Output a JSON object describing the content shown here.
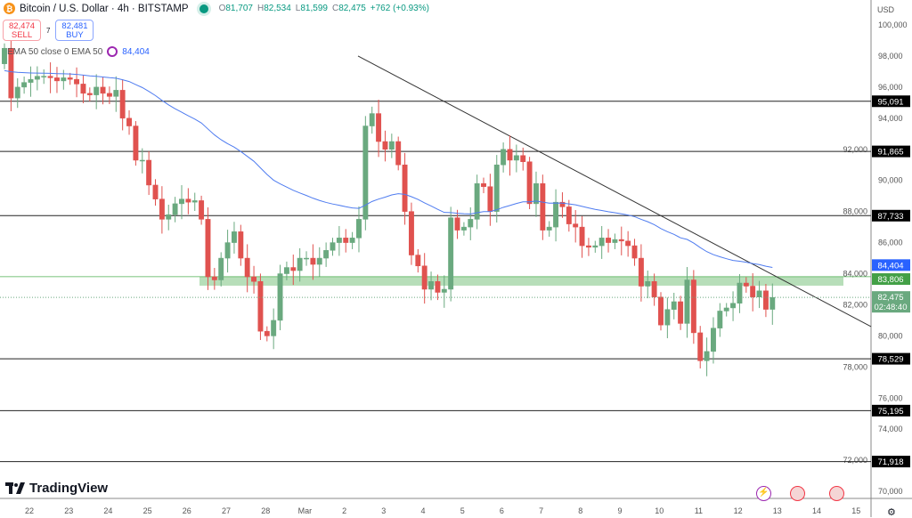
{
  "header": {
    "title": "Bitcoin / U.S. Dollar · 4h · BITSTAMP",
    "open_label": "O",
    "open": "81,707",
    "high_label": "H",
    "high": "82,534",
    "low_label": "L",
    "low": "81,599",
    "close_label": "C",
    "close": "82,475",
    "change": "+762 (+0.93%)"
  },
  "trade": {
    "sell_price": "82,474",
    "sell_label": "SELL",
    "spread": "7",
    "buy_price": "82,481",
    "buy_label": "BUY"
  },
  "indicator": {
    "label": "EMA 50 close 0 EMA 50",
    "value": "84,404"
  },
  "axis": {
    "currency": "USD"
  },
  "brand": "TradingView",
  "colors": {
    "up": "#6aa97f",
    "down": "#e0524f",
    "ema": "#4f7cf0",
    "zone": "#a5d6a7",
    "trend": "#333333"
  },
  "chart_data": {
    "type": "candlestick",
    "symbol": "BTCUSD",
    "interval": "4h",
    "ylim": [
      69000,
      101500
    ],
    "yticks": [
      "100,000",
      "98,000",
      "96,000",
      "94,000",
      "92,000",
      "90,000",
      "88,000",
      "86,000",
      "84,000",
      "82,000",
      "80,000",
      "78,000",
      "76,000",
      "74,000",
      "72,000",
      "70,000"
    ],
    "ytick_values": [
      100000,
      98000,
      96000,
      94000,
      92000,
      90000,
      88000,
      86000,
      84000,
      82000,
      80000,
      78000,
      76000,
      74000,
      72000,
      70000
    ],
    "xticks": [
      "22",
      "23",
      "24",
      "25",
      "26",
      "27",
      "28",
      "Mar",
      "2",
      "3",
      "4",
      "5",
      "6",
      "7",
      "8",
      "9",
      "10",
      "11",
      "12",
      "13",
      "14",
      "15"
    ],
    "first_open": 97.5,
    "closes_k": [
      98.5,
      95.3,
      96.0,
      96.3,
      96.5,
      96.7,
      96.7,
      96.6,
      96.4,
      96.6,
      96.5,
      96.2,
      95.6,
      95.5,
      96.0,
      95.6,
      95.4,
      95.8,
      94.0,
      93.5,
      91.3,
      91.3,
      89.7,
      88.8,
      87.5,
      87.8,
      88.5,
      88.8,
      88.6,
      88.7,
      87.5,
      83.8,
      83.6,
      85.0,
      86.0,
      86.7,
      85.0,
      83.8,
      83.5,
      80.3,
      80.0,
      81.0,
      84.0,
      84.4,
      84.2,
      85.0,
      85.0,
      84.6,
      85.0,
      85.5,
      86.0,
      86.3,
      86.0,
      86.3,
      87.5,
      93.5,
      94.3,
      92.5,
      92.0,
      92.5,
      91.0,
      88.0,
      85.2,
      84.5,
      83.0,
      83.5,
      82.8,
      83.0,
      87.6,
      86.8,
      87.0,
      87.5,
      89.8,
      89.6,
      88.0,
      91.0,
      92.0,
      91.3,
      91.6,
      91.2,
      88.5,
      89.8,
      86.8,
      87.0,
      88.6,
      88.3,
      87.2,
      87.0,
      85.8,
      85.7,
      85.8,
      86.3,
      86.0,
      86.2,
      86.1,
      85.8,
      85.0,
      83.2,
      83.5,
      82.5,
      80.7,
      81.7,
      82.2,
      80.8,
      83.6,
      80.2,
      78.4,
      79.0,
      80.5,
      81.6,
      81.8,
      82.1,
      83.4,
      83.2,
      82.5,
      82.9,
      81.707,
      82.475
    ],
    "ema_length": 50,
    "ema_last": 84404,
    "horizontal_levels": [
      {
        "value": 95091,
        "label": "95,091"
      },
      {
        "value": 91865,
        "label": "91,865"
      },
      {
        "value": 87733,
        "label": "87,733"
      },
      {
        "value": 78529,
        "label": "78,529"
      },
      {
        "value": 75195,
        "label": "75,195"
      },
      {
        "value": 71918,
        "label": "71,918"
      }
    ],
    "support_zone": {
      "low": 83230,
      "high": 83806,
      "label": "83,806"
    },
    "trendline": {
      "from_price": 98000,
      "to_price": 80600,
      "from_date": "Mar 2",
      "to_date": "Mar 15"
    },
    "last_price": {
      "value": 82475,
      "label": "82,475",
      "countdown": "02:48:40"
    },
    "ema_label": "84,404"
  }
}
